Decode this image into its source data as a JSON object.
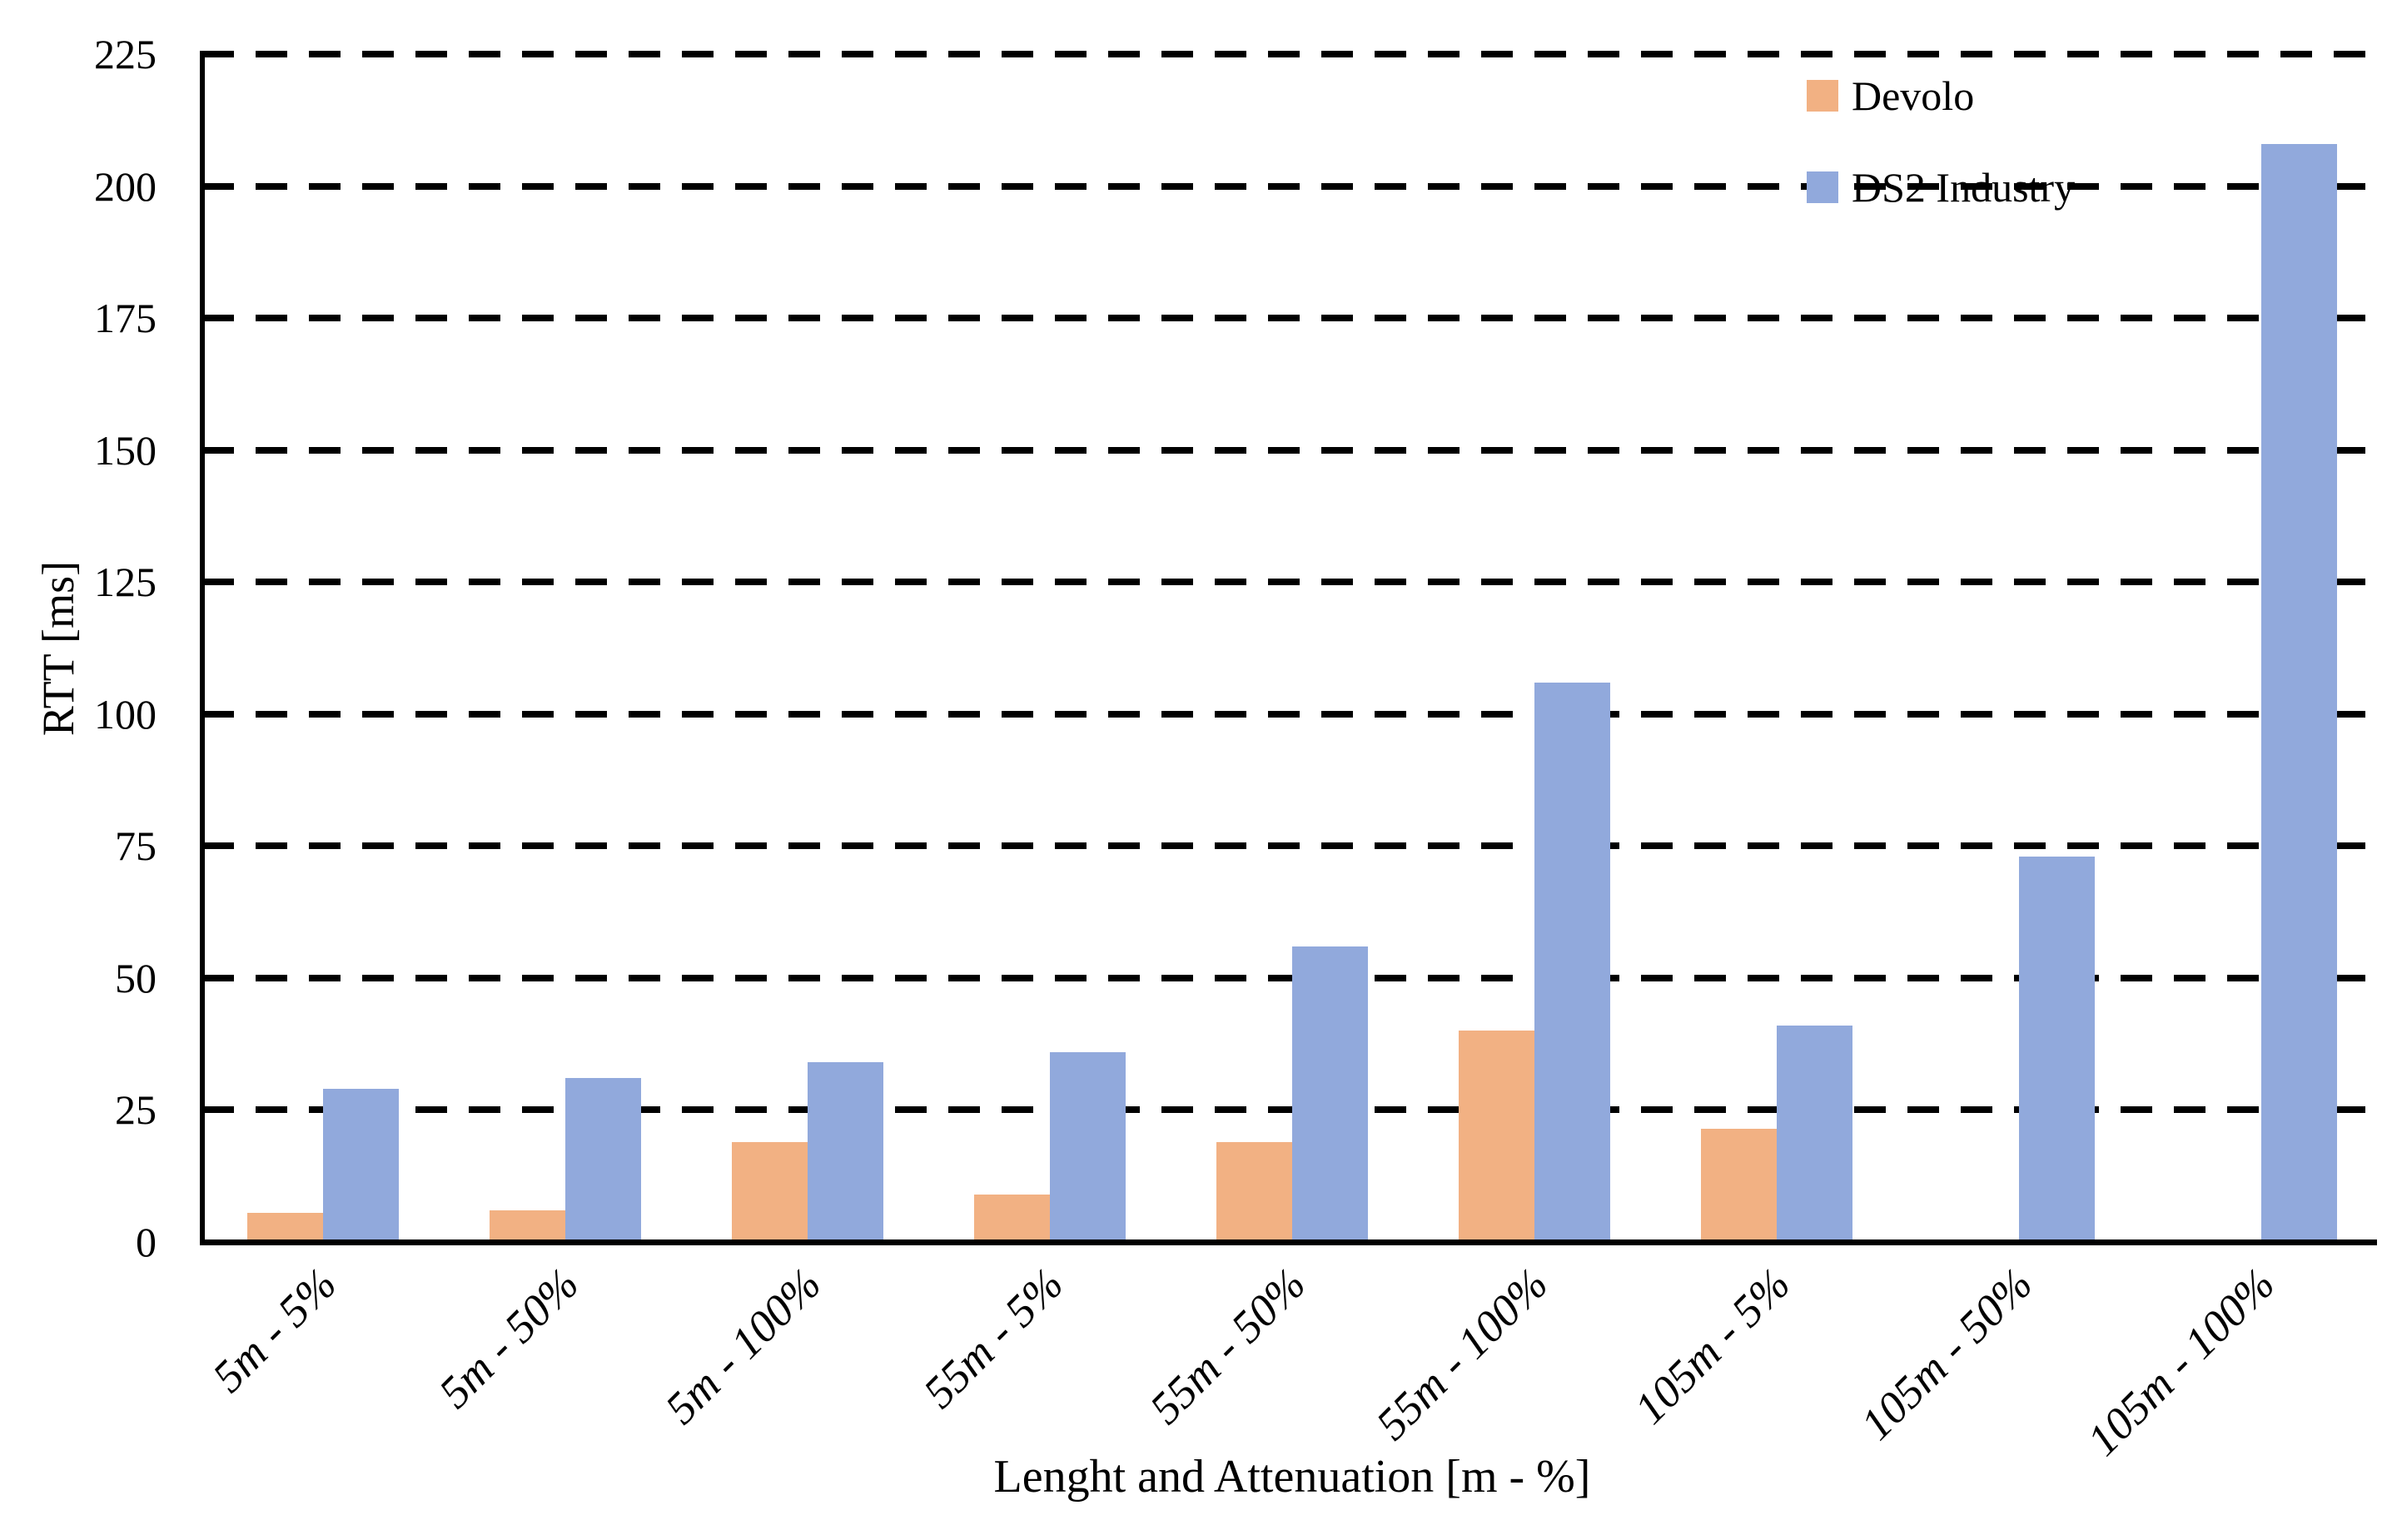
{
  "chart_data": {
    "type": "bar",
    "title": "",
    "xlabel": "Lenght and Attenuation [m - %]",
    "ylabel": "RTT [ms]",
    "categories": [
      "5m - 5%",
      "5m - 50%",
      "5m - 100%",
      "55m - 5%",
      "55m - 50%",
      "55m - 100%",
      "105m - 5%",
      "105m - 50%",
      "105m - 100%"
    ],
    "series": [
      {
        "name": "Devolo",
        "color": "#F2B183",
        "values": [
          5.5,
          6,
          19,
          9,
          19,
          40,
          21.5,
          0,
          0
        ]
      },
      {
        "name": "DS2 Industry",
        "color": "#91A9DC",
        "values": [
          29,
          31,
          34,
          36,
          56,
          106,
          41,
          73,
          208
        ]
      }
    ],
    "ylim": [
      0,
      225
    ],
    "ytick_step": 25,
    "yticks": [
      0,
      25,
      50,
      75,
      100,
      125,
      150,
      175,
      200,
      225
    ],
    "grid": "dashed-horizontal",
    "gridline_color": "#000000",
    "axis_color": "#000000",
    "legend_position": "top-right",
    "background_color": "#ffffff"
  }
}
